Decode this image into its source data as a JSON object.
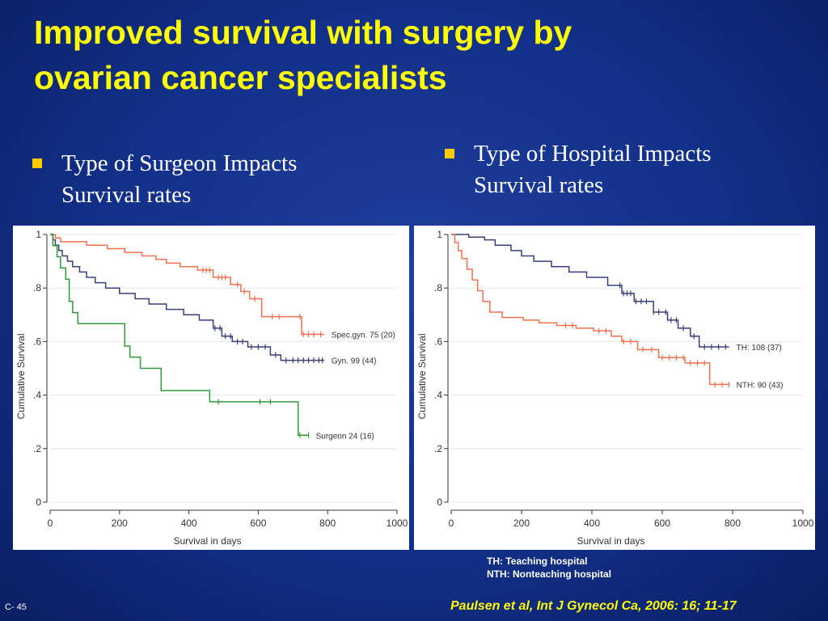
{
  "slide": {
    "title_line1": "Improved survival with surgery by",
    "title_line2": "ovarian cancer specialists",
    "bullet1_line1": "Type of  Surgeon Impacts",
    "bullet1_line2": "Survival rates",
    "bullet2_line1": "Type of  Hospital Impacts",
    "bullet2_line2": "Survival rates",
    "footnote_line1": "TH: Teaching hospital",
    "footnote_line2": "NTH: Nonteaching hospital",
    "slide_number": "C- 45",
    "citation": "Paulsen et al, Int J Gynecol Ca, 2006: 16; 11-17"
  },
  "colors": {
    "title": "#ffff00",
    "bullet": "#ffcc00",
    "spec_gyn": "#f07050",
    "gyn": "#3a3f7a",
    "surgeon": "#2f9a3a",
    "th": "#3a3f7a",
    "nth": "#f07050"
  },
  "chart_data": [
    {
      "type": "line",
      "step": true,
      "xlabel": "Survival in days",
      "ylabel": "Cumulative Survival",
      "xlim": [
        0,
        1000
      ],
      "ylim": [
        0,
        1
      ],
      "xticks": [
        0,
        200,
        400,
        600,
        800,
        1000
      ],
      "xtick_labels": [
        "0",
        "200",
        "400",
        "600",
        "800",
        "1000"
      ],
      "yticks": [
        0,
        0.2,
        0.4,
        0.6,
        0.8,
        1
      ],
      "ytick_labels": [
        "0",
        ".2",
        ".4",
        ".6",
        ".8",
        "1"
      ],
      "grid": "horizontal",
      "series": [
        {
          "name": "Spec.gyn. 75 (20)",
          "color_key": "spec_gyn",
          "x": [
            0,
            15,
            30,
            105,
            165,
            215,
            265,
            305,
            335,
            375,
            425,
            470,
            520,
            550,
            575,
            610,
            690,
            725,
            790
          ],
          "y": [
            1,
            0.987,
            0.973,
            0.96,
            0.947,
            0.933,
            0.92,
            0.907,
            0.893,
            0.88,
            0.867,
            0.84,
            0.813,
            0.787,
            0.76,
            0.693,
            0.693,
            0.627,
            0.627
          ],
          "censored_x": [
            440,
            450,
            460,
            485,
            495,
            505,
            540,
            560,
            590,
            640,
            660,
            720,
            730,
            745,
            760,
            780
          ]
        },
        {
          "name": "Gyn. 99 (44)",
          "color_key": "gyn",
          "x": [
            0,
            8,
            15,
            25,
            35,
            50,
            65,
            85,
            105,
            130,
            160,
            200,
            245,
            285,
            335,
            385,
            430,
            470,
            495,
            525,
            570,
            635,
            665,
            790
          ],
          "y": [
            1,
            0.98,
            0.96,
            0.94,
            0.92,
            0.9,
            0.88,
            0.86,
            0.84,
            0.82,
            0.8,
            0.78,
            0.76,
            0.74,
            0.72,
            0.7,
            0.68,
            0.65,
            0.62,
            0.6,
            0.58,
            0.55,
            0.53,
            0.53
          ],
          "censored_x": [
            475,
            490,
            505,
            520,
            540,
            555,
            580,
            600,
            620,
            650,
            680,
            700,
            715,
            730,
            745,
            760,
            775,
            785
          ]
        },
        {
          "name": "Surgeon 24 (16)",
          "color_key": "surgeon",
          "x": [
            0,
            8,
            20,
            30,
            45,
            55,
            65,
            80,
            215,
            230,
            260,
            320,
            460,
            715,
            745
          ],
          "y": [
            1,
            0.958,
            0.917,
            0.875,
            0.833,
            0.75,
            0.708,
            0.667,
            0.583,
            0.542,
            0.5,
            0.417,
            0.375,
            0.25,
            0.25
          ],
          "censored_x": [
            485,
            605,
            635,
            720,
            745
          ]
        }
      ]
    },
    {
      "type": "line",
      "step": true,
      "xlabel": "Survival in days",
      "ylabel": "Cumulative Survival",
      "xlim": [
        0,
        1000
      ],
      "ylim": [
        0,
        1
      ],
      "xticks": [
        0,
        200,
        400,
        600,
        800,
        1000
      ],
      "xtick_labels": [
        "0",
        "200",
        "400",
        "600",
        "800",
        "1000"
      ],
      "yticks": [
        0,
        0.2,
        0.4,
        0.6,
        0.8,
        1
      ],
      "ytick_labels": [
        "0",
        ".2",
        ".4",
        ".6",
        ".8",
        "1"
      ],
      "grid": "horizontal",
      "series": [
        {
          "name": "TH: 108 (37)",
          "color_key": "th",
          "x": [
            0,
            50,
            95,
            125,
            170,
            200,
            235,
            285,
            335,
            385,
            445,
            485,
            520,
            575,
            615,
            645,
            680,
            705,
            790
          ],
          "y": [
            1,
            0.99,
            0.98,
            0.96,
            0.94,
            0.92,
            0.9,
            0.88,
            0.86,
            0.84,
            0.81,
            0.78,
            0.75,
            0.71,
            0.68,
            0.65,
            0.62,
            0.58,
            0.58
          ],
          "censored_x": [
            480,
            490,
            500,
            510,
            525,
            540,
            555,
            575,
            590,
            610,
            625,
            640,
            660,
            690,
            720,
            740,
            760,
            780
          ]
        },
        {
          "name": "NTH: 90 (43)",
          "color_key": "nth",
          "x": [
            0,
            10,
            20,
            30,
            45,
            60,
            75,
            90,
            110,
            145,
            205,
            250,
            300,
            355,
            405,
            455,
            485,
            530,
            590,
            665,
            735,
            790
          ],
          "y": [
            1,
            0.97,
            0.94,
            0.91,
            0.87,
            0.83,
            0.79,
            0.75,
            0.71,
            0.69,
            0.68,
            0.67,
            0.66,
            0.65,
            0.64,
            0.62,
            0.6,
            0.57,
            0.54,
            0.52,
            0.44,
            0.44
          ],
          "censored_x": [
            325,
            345,
            420,
            440,
            490,
            510,
            545,
            570,
            600,
            620,
            640,
            660,
            680,
            700,
            720,
            750,
            770,
            790
          ]
        }
      ]
    }
  ]
}
